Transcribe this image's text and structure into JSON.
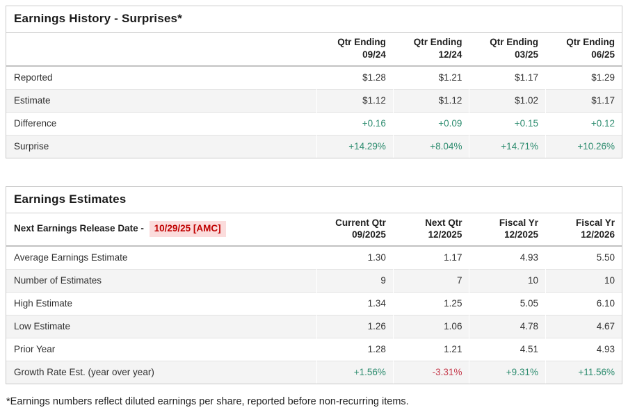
{
  "colors": {
    "positive": "#2d8c6f",
    "negative": "#c5394a",
    "alert_red": "#c00000",
    "alert_background": "#fbdcdc",
    "row_stripe": "#f4f4f4"
  },
  "history": {
    "title": "Earnings History - Surprises*",
    "columns": [
      {
        "line1": "Qtr Ending",
        "line2": "09/24"
      },
      {
        "line1": "Qtr Ending",
        "line2": "12/24"
      },
      {
        "line1": "Qtr Ending",
        "line2": "03/25"
      },
      {
        "line1": "Qtr Ending",
        "line2": "06/25"
      }
    ],
    "rows": [
      {
        "label": "Reported",
        "values": [
          "$1.28",
          "$1.21",
          "$1.17",
          "$1.29"
        ]
      },
      {
        "label": "Estimate",
        "values": [
          "$1.12",
          "$1.12",
          "$1.02",
          "$1.17"
        ]
      },
      {
        "label": "Difference",
        "values": [
          "+0.16",
          "+0.09",
          "+0.15",
          "+0.12"
        ]
      },
      {
        "label": "Surprise",
        "values": [
          "+14.29%",
          "+8.04%",
          "+14.71%",
          "+10.26%"
        ]
      }
    ]
  },
  "estimates": {
    "title": "Earnings Estimates",
    "release_label": "Next Earnings Release Date -",
    "release_date": "10/29/25 [AMC]",
    "columns": [
      {
        "line1": "Current Qtr",
        "line2": "09/2025"
      },
      {
        "line1": "Next Qtr",
        "line2": "12/2025"
      },
      {
        "line1": "Fiscal Yr",
        "line2": "12/2025"
      },
      {
        "line1": "Fiscal Yr",
        "line2": "12/2026"
      }
    ],
    "rows": [
      {
        "label": "Average Earnings Estimate",
        "values": [
          "1.30",
          "1.17",
          "4.93",
          "5.50"
        ]
      },
      {
        "label": "Number of Estimates",
        "values": [
          "9",
          "7",
          "10",
          "10"
        ]
      },
      {
        "label": "High Estimate",
        "values": [
          "1.34",
          "1.25",
          "5.05",
          "6.10"
        ]
      },
      {
        "label": "Low Estimate",
        "values": [
          "1.26",
          "1.06",
          "4.78",
          "4.67"
        ]
      },
      {
        "label": "Prior Year",
        "values": [
          "1.28",
          "1.21",
          "4.51",
          "4.93"
        ]
      },
      {
        "label": "Growth Rate Est. (year over year)",
        "values": [
          "+1.56%",
          "-3.31%",
          "+9.31%",
          "+11.56%"
        ]
      }
    ]
  },
  "footnote": "*Earnings numbers reflect diluted earnings per share, reported before non-recurring items."
}
